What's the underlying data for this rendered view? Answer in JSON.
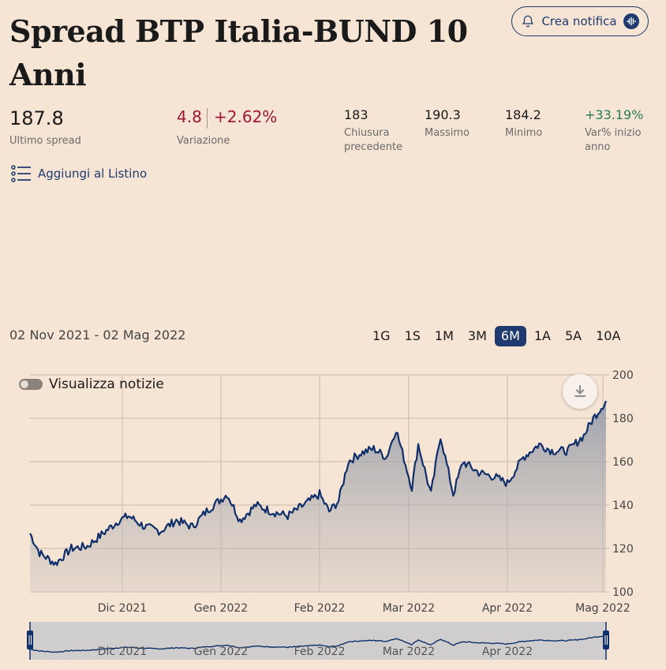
{
  "header": {
    "title": "Spread BTP Italia-BUND 10 Anni",
    "notify_label": "Crea notifica"
  },
  "stats": {
    "last_value": "187.8",
    "last_label": "Ultimo spread",
    "change_abs": "4.8",
    "change_pct": "+2.62%",
    "change_label": "Variazione",
    "prev_close_value": "183",
    "prev_close_label": "Chiusura precedente",
    "max_value": "190.3",
    "max_label": "Massimo",
    "min_value": "184.2",
    "min_label": "Minimo",
    "ytd_value": "+33.19%",
    "ytd_label": "Var% inizio anno"
  },
  "watchlist_label": "Aggiungi al Listino",
  "date_range": "02 Nov 2021 - 02 Mag 2022",
  "periods": [
    "1G",
    "1S",
    "1M",
    "3M",
    "6M",
    "1A",
    "5A",
    "10A"
  ],
  "active_period": "6M",
  "news_toggle_label": "Visualizza notizie",
  "icons": {
    "bell": "bell-icon",
    "ai": "ai-badge-icon",
    "list": "list-icon",
    "download": "download-icon",
    "toggle": "toggle-switch"
  },
  "colors": {
    "background": "#f6e4d4",
    "accent": "#1e3a6e",
    "negative": "#a0172e",
    "positive": "#2a7a5a"
  },
  "chart_data": {
    "type": "area",
    "x": [
      "2021-11-02",
      "2021-11-05",
      "2021-11-10",
      "2021-11-15",
      "2021-11-20",
      "2021-11-25",
      "2021-11-30",
      "2021-12-03",
      "2021-12-08",
      "2021-12-13",
      "2021-12-18",
      "2021-12-23",
      "2021-12-28",
      "2022-01-03",
      "2022-01-07",
      "2022-01-12",
      "2022-01-17",
      "2022-01-22",
      "2022-01-27",
      "2022-02-01",
      "2022-02-04",
      "2022-02-07",
      "2022-02-10",
      "2022-02-14",
      "2022-02-18",
      "2022-02-22",
      "2022-02-25",
      "2022-03-02",
      "2022-03-04",
      "2022-03-08",
      "2022-03-11",
      "2022-03-15",
      "2022-03-18",
      "2022-03-23",
      "2022-03-28",
      "2022-04-01",
      "2022-04-06",
      "2022-04-11",
      "2022-04-15",
      "2022-04-20",
      "2022-04-25",
      "2022-04-28",
      "2022-05-02"
    ],
    "y": [
      127,
      118,
      113,
      120,
      121,
      127,
      133,
      135,
      130,
      128,
      133,
      130,
      138,
      145,
      133,
      140,
      137,
      135,
      140,
      145,
      137,
      142,
      160,
      164,
      166,
      162,
      175,
      148,
      168,
      145,
      172,
      145,
      160,
      155,
      153,
      150,
      162,
      168,
      165,
      165,
      172,
      180,
      188
    ],
    "ylim": [
      100,
      200
    ],
    "yticks": [
      100,
      120,
      140,
      160,
      180,
      200
    ],
    "xtick_labels": [
      "Dic 2021",
      "Gen 2022",
      "Feb 2022",
      "Mar 2022",
      "Apr 2022",
      "Mag 2022"
    ],
    "xtick_dates": [
      "2021-12-01",
      "2022-01-01",
      "2022-02-01",
      "2022-03-01",
      "2022-04-01",
      "2022-05-01"
    ],
    "grid": true,
    "y_axis_side": "right"
  }
}
